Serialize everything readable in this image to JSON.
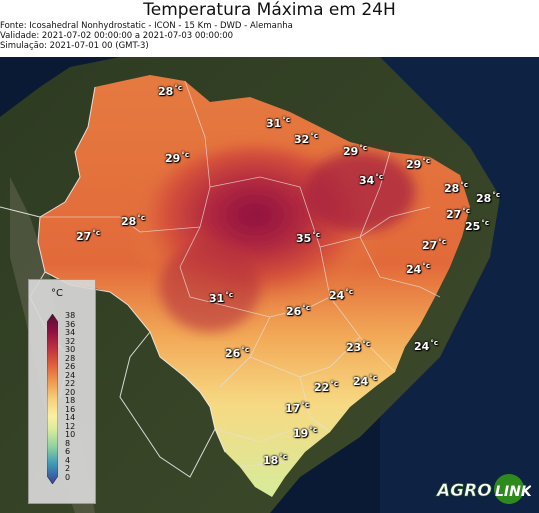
{
  "header": {
    "title": "Temperatura Máxima em 24H",
    "source": "Fonte: Icosahedral Nonhydrostatic - ICON - 15 Km - DWD - Alemanha",
    "validity": "Validade: 2021-07-02 00:00:00 a 2021-07-03 00:00:00",
    "simulation": "Simulação: 2021-07-01 00 (GMT-3)"
  },
  "map_labels": [
    {
      "id": "rr",
      "value": "28",
      "unit": "°c"
    },
    {
      "id": "am",
      "value": "29",
      "unit": "°c"
    },
    {
      "id": "ap",
      "value": "31",
      "unit": "°c"
    },
    {
      "id": "pa-n",
      "value": "32",
      "unit": "°c"
    },
    {
      "id": "ma-n",
      "value": "29",
      "unit": "°c"
    },
    {
      "id": "ce",
      "value": "29",
      "unit": "°c"
    },
    {
      "id": "pi",
      "value": "34",
      "unit": "°c"
    },
    {
      "id": "rn",
      "value": "28",
      "unit": "°c"
    },
    {
      "id": "rn-coast",
      "value": "28",
      "unit": "°c"
    },
    {
      "id": "pb",
      "value": "27",
      "unit": "°c"
    },
    {
      "id": "pe-coast",
      "value": "25",
      "unit": "°c"
    },
    {
      "id": "am-s",
      "value": "28",
      "unit": "°c"
    },
    {
      "id": "ac",
      "value": "27",
      "unit": "°c"
    },
    {
      "id": "to",
      "value": "35",
      "unit": "°c"
    },
    {
      "id": "al",
      "value": "27",
      "unit": "°c"
    },
    {
      "id": "se",
      "value": "24",
      "unit": "°c"
    },
    {
      "id": "mt",
      "value": "31",
      "unit": "°c"
    },
    {
      "id": "ba",
      "value": "24",
      "unit": "°c"
    },
    {
      "id": "go",
      "value": "26",
      "unit": "°c"
    },
    {
      "id": "ms",
      "value": "26",
      "unit": "°c"
    },
    {
      "id": "mg",
      "value": "23",
      "unit": "°c"
    },
    {
      "id": "ba-sea",
      "value": "24",
      "unit": "°c"
    },
    {
      "id": "sp",
      "value": "22",
      "unit": "°c"
    },
    {
      "id": "rj",
      "value": "24",
      "unit": "°c"
    },
    {
      "id": "pr",
      "value": "17",
      "unit": "°c"
    },
    {
      "id": "sc",
      "value": "19",
      "unit": "°c"
    },
    {
      "id": "rs",
      "value": "18",
      "unit": "°c"
    }
  ],
  "legend": {
    "unit": "°C",
    "ticks": [
      "38",
      "36",
      "34",
      "32",
      "30",
      "28",
      "26",
      "24",
      "22",
      "20",
      "18",
      "16",
      "14",
      "12",
      "10",
      "8",
      "6",
      "4",
      "2",
      "0"
    ]
  },
  "logo": {
    "text_left": "AGRO",
    "text_right": "LINK"
  },
  "colors": {
    "hot": "#8e1040",
    "warm": "#e06a38",
    "mild": "#f3c56b",
    "cool": "#d9ec9a",
    "ocean": "#0b1a34"
  }
}
